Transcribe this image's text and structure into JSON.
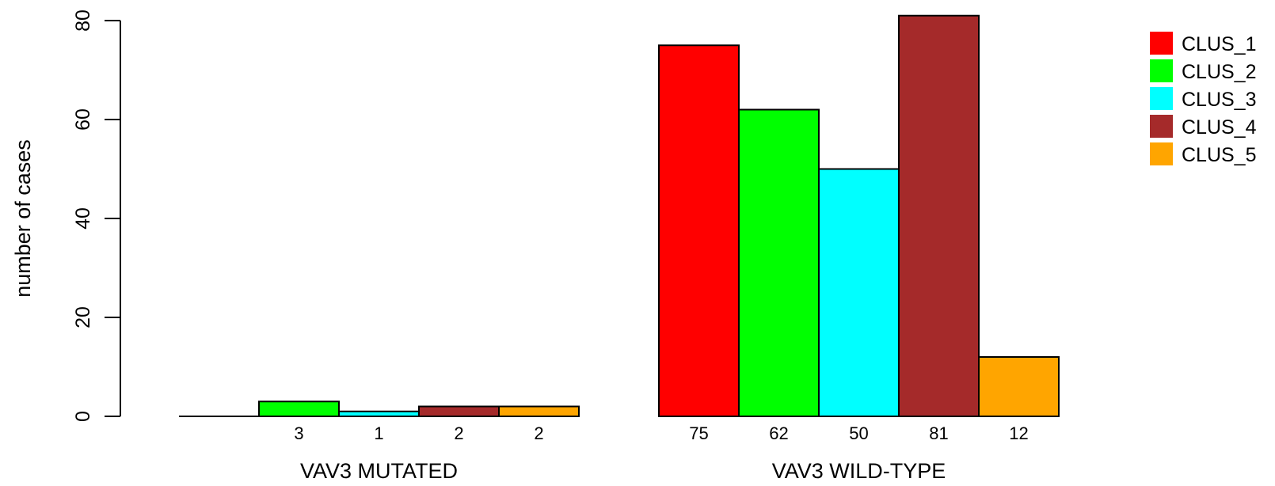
{
  "chart_data": {
    "type": "bar",
    "title": "",
    "xlabel": "",
    "ylabel": "number of cases",
    "ylim": [
      0,
      80
    ],
    "yticks": [
      0,
      20,
      40,
      60,
      80
    ],
    "grid": false,
    "legend_position": "top-right",
    "groups": [
      "VAV3 MUTATED",
      "VAV3 WILD-TYPE"
    ],
    "series": [
      {
        "name": "CLUS_1",
        "color": "#FF0000",
        "values": [
          0,
          75
        ],
        "labels": [
          "",
          "75"
        ]
      },
      {
        "name": "CLUS_2",
        "color": "#00FF00",
        "values": [
          3,
          62
        ],
        "labels": [
          "3",
          "62"
        ]
      },
      {
        "name": "CLUS_3",
        "color": "#00FFFF",
        "values": [
          1,
          50
        ],
        "labels": [
          "1",
          "50"
        ]
      },
      {
        "name": "CLUS_4",
        "color": "#A52A2A",
        "values": [
          2,
          81
        ],
        "labels": [
          "2",
          "81"
        ]
      },
      {
        "name": "CLUS_5",
        "color": "#FFA500",
        "values": [
          2,
          12
        ],
        "labels": [
          "2",
          "12"
        ]
      }
    ]
  }
}
